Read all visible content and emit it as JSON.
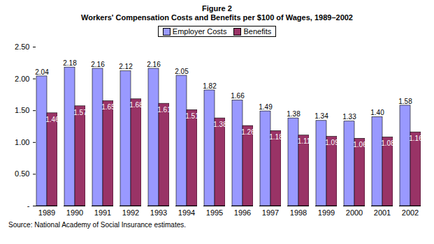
{
  "chart_data": {
    "type": "bar",
    "title": "Figure 2",
    "subtitle": "Workers' Compensation Costs and Benefits per $100 of Wages, 1989–2002",
    "caption": "Source: National Academy of Social Insurance estimates.",
    "categories": [
      "1989",
      "1990",
      "1991",
      "1992",
      "1993",
      "1994",
      "1995",
      "1996",
      "1997",
      "1998",
      "1999",
      "2000",
      "2001",
      "2002"
    ],
    "series": [
      {
        "name": "Employer Costs",
        "color": "#9999ff",
        "values": [
          2.04,
          2.18,
          2.16,
          2.12,
          2.16,
          2.05,
          1.82,
          1.66,
          1.49,
          1.38,
          1.34,
          1.33,
          1.4,
          1.58
        ],
        "value_labels": [
          "2.04",
          "2.18",
          "2.16",
          "2.12",
          "2.16",
          "2.05",
          "1.82",
          "1.66",
          "1.49",
          "1.38",
          "1.34",
          "1.33",
          "1.40",
          "1.58"
        ]
      },
      {
        "name": "Benefits",
        "color": "#993366",
        "values": [
          1.46,
          1.57,
          1.65,
          1.68,
          1.61,
          1.51,
          1.38,
          1.26,
          1.18,
          1.11,
          1.09,
          1.06,
          1.08,
          1.16
        ],
        "value_labels": [
          "1.46",
          "1.57",
          "1.65",
          "1.68",
          "1.61",
          "1.51",
          "1.38",
          "1.26",
          "1.18",
          "1.11",
          "1.09",
          "1.06",
          "1.08",
          "1.16"
        ]
      }
    ],
    "ylim": [
      0,
      2.5
    ],
    "yticks": [
      {
        "value": 0,
        "label": "-"
      },
      {
        "value": 0.5,
        "label": "0.50"
      },
      {
        "value": 1,
        "label": "1.00"
      },
      {
        "value": 1.5,
        "label": "1.50"
      },
      {
        "value": 2,
        "label": "2.00"
      },
      {
        "value": 2.5,
        "label": "2.50"
      }
    ],
    "grid": false,
    "legend": "top",
    "data_labels": true
  }
}
